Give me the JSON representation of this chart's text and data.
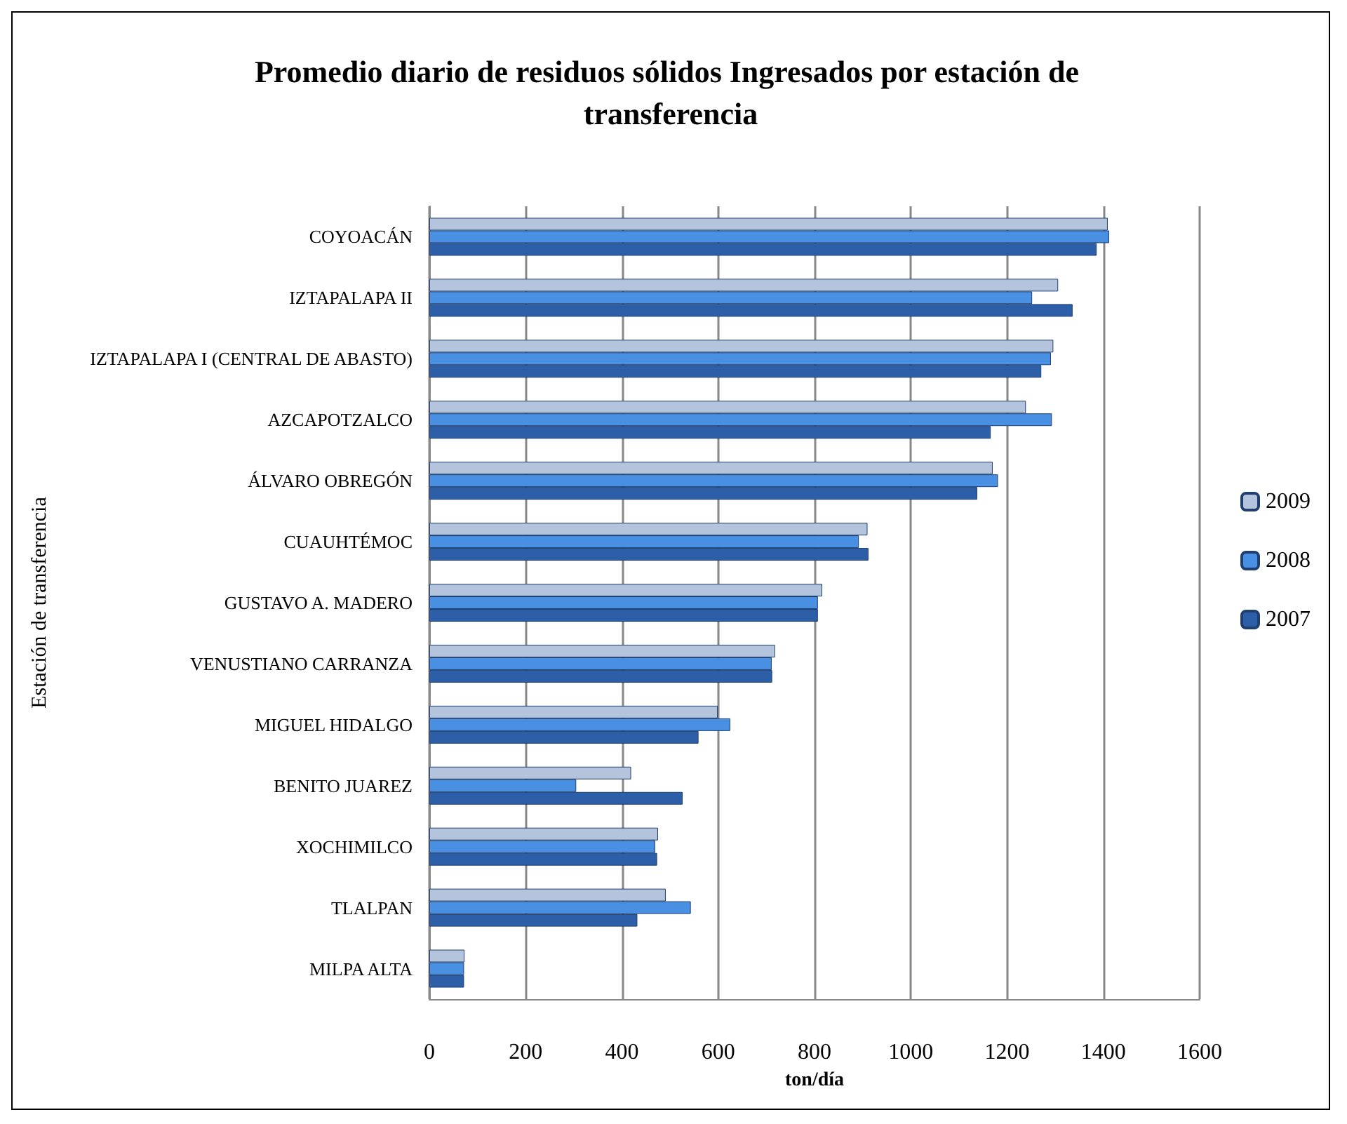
{
  "chart_data": {
    "type": "bar",
    "orientation": "horizontal",
    "title": "Promedio diario de residuos sólidos Ingresados por estación de transferencia",
    "xlabel": "ton/día",
    "ylabel": "Estación de transferencia",
    "categories": [
      "COYOACÁN",
      "IZTAPALAPA II",
      "IZTAPALAPA I (CENTRAL DE ABASTO)",
      "AZCAPOTZALCO",
      "ÁLVARO OBREGÓN",
      "CUAUHTÉMOC",
      "GUSTAVO A. MADERO",
      "VENUSTIANO CARRANZA",
      "MIGUEL HIDALGO",
      "BENITO JUAREZ",
      "XOCHIMILCO",
      "TLALPAN",
      "MILPA ALTA"
    ],
    "series": [
      {
        "name": "2009",
        "color": "#b4c4dc",
        "values": [
          1409,
          1306,
          1296,
          1239,
          1170,
          910,
          816,
          718,
          599,
          419,
          475,
          491,
          73
        ]
      },
      {
        "name": "2008",
        "color": "#4a90e2",
        "values": [
          1412,
          1252,
          1291,
          1293,
          1181,
          892,
          807,
          711,
          625,
          305,
          469,
          543,
          72
        ]
      },
      {
        "name": "2007",
        "color": "#2d5ea8",
        "values": [
          1386,
          1336,
          1271,
          1166,
          1138,
          912,
          807,
          712,
          559,
          526,
          473,
          432,
          72
        ]
      }
    ],
    "xlim": [
      0,
      1600
    ],
    "xticks": [
      0,
      200,
      400,
      600,
      800,
      1000,
      1200,
      1400,
      1600
    ],
    "grid": "x",
    "legend": "right"
  }
}
